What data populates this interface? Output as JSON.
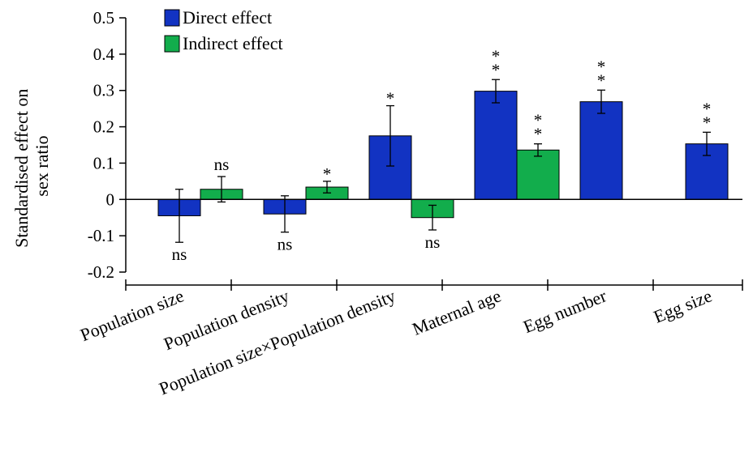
{
  "chart_data": {
    "type": "bar",
    "title": "",
    "xlabel": "",
    "ylabel": "Standardised effect on sex ratio",
    "ylabel_lines": [
      "Standardised effect on",
      "sex ratio"
    ],
    "ylim": [
      -0.2,
      0.5
    ],
    "yticks": [
      -0.2,
      -0.1,
      0,
      0.1,
      0.2,
      0.3,
      0.4,
      0.5
    ],
    "ytick_labels": [
      "-0.2",
      "-0.1",
      "0",
      "0.1",
      "0.2",
      "0.3",
      "0.4",
      "0.5"
    ],
    "categories": [
      "Population size",
      "Population density",
      "Population size×Population density",
      "Maternal age",
      "Egg number",
      "Egg size"
    ],
    "legend_position": "top-left",
    "grid": false,
    "series": [
      {
        "name": "Direct effect",
        "color": "#1233c2",
        "values": [
          -0.045,
          -0.04,
          0.175,
          0.298,
          0.269,
          0.153
        ],
        "errors": [
          0.073,
          0.05,
          0.083,
          0.032,
          0.032,
          0.032
        ],
        "significance": [
          "ns",
          "ns",
          "*",
          "**",
          "**",
          "**"
        ]
      },
      {
        "name": "Indirect effect",
        "color": "#12ad4c",
        "values": [
          0.028,
          0.034,
          -0.05,
          0.136,
          null,
          null
        ],
        "errors": [
          0.035,
          0.016,
          0.034,
          0.017,
          null,
          null
        ],
        "significance": [
          "ns",
          "*",
          "ns",
          "**",
          null,
          null
        ]
      }
    ]
  }
}
